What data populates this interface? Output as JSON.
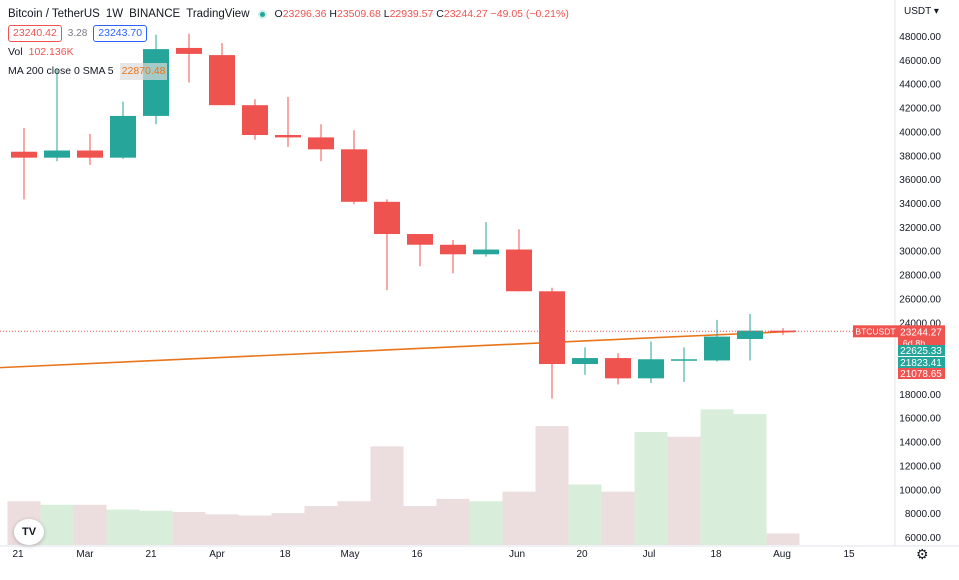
{
  "header": {
    "symbol": "Bitcoin / TetherUS",
    "interval": "1W",
    "exchange": "BINANCE",
    "source": "TradingView",
    "ohlc": {
      "o_label": "O",
      "o": "23296.36",
      "h_label": "H",
      "h": "23509.68",
      "l_label": "L",
      "l": "22939.57",
      "c_label": "C",
      "c": "23244.27",
      "change": "−49.05 (−0.21%)"
    },
    "bid": "23240.42",
    "spread": "3.28",
    "ask": "23243.70",
    "vol_label": "Vol",
    "vol_value": "102.136K",
    "ma_label": "MA 200 close 0 SMA 5",
    "ma_value": "22870.48"
  },
  "currency": "USDT",
  "price_axis": {
    "ticks": [
      "48000.00",
      "46000.00",
      "44000.00",
      "42000.00",
      "40000.00",
      "38000.00",
      "36000.00",
      "34000.00",
      "32000.00",
      "30000.00",
      "28000.00",
      "26000.00",
      "24000.00",
      "18000.00",
      "16000.00",
      "14000.00",
      "12000.00",
      "10000.00",
      "8000.00",
      "6000.00"
    ],
    "tag_symbol": "BTCUSDT",
    "tag_price": "23244.27",
    "tag_countdown": "6d 8h",
    "tag_ma": "22625.33",
    "tag_green": "21823.41",
    "tag_red": "21078.65"
  },
  "time_axis": {
    "labels": [
      "21",
      "Mar",
      "21",
      "Apr",
      "18",
      "May",
      "16",
      "Jun",
      "20",
      "Jul",
      "18",
      "Aug",
      "15"
    ]
  },
  "colors": {
    "up": "#26a69a",
    "down": "#ef5350",
    "ma": "#e8751a",
    "vol_up": "#d8eedb",
    "vol_down": "#ecdede"
  },
  "chart_data": {
    "type": "candlestick",
    "interval": "1W",
    "price_ylim": [
      5000,
      49500
    ],
    "volume_axis_ylim": [
      5000,
      49500
    ],
    "candles": [
      {
        "o": 38300,
        "h": 40300,
        "l": 34300,
        "c": 37800
      },
      {
        "o": 37800,
        "h": 45300,
        "l": 37500,
        "c": 38400
      },
      {
        "o": 38400,
        "h": 39800,
        "l": 37200,
        "c": 37800
      },
      {
        "o": 37800,
        "h": 42500,
        "l": 37700,
        "c": 41300
      },
      {
        "o": 41300,
        "h": 48100,
        "l": 40600,
        "c": 46900
      },
      {
        "o": 47000,
        "h": 48200,
        "l": 44100,
        "c": 46500
      },
      {
        "o": 46400,
        "h": 47400,
        "l": 42200,
        "c": 42200
      },
      {
        "o": 42200,
        "h": 42700,
        "l": 39300,
        "c": 39700
      },
      {
        "o": 39700,
        "h": 42900,
        "l": 38700,
        "c": 39500
      },
      {
        "o": 39500,
        "h": 40600,
        "l": 37500,
        "c": 38500
      },
      {
        "o": 38500,
        "h": 40100,
        "l": 33900,
        "c": 34100
      },
      {
        "o": 34100,
        "h": 34300,
        "l": 26700,
        "c": 31400
      },
      {
        "o": 31400,
        "h": 31400,
        "l": 28700,
        "c": 30500
      },
      {
        "o": 30500,
        "h": 30900,
        "l": 28100,
        "c": 29700
      },
      {
        "o": 29700,
        "h": 32400,
        "l": 29500,
        "c": 30100
      },
      {
        "o": 30100,
        "h": 31800,
        "l": 26600,
        "c": 26600
      },
      {
        "o": 26600,
        "h": 26900,
        "l": 17600,
        "c": 20500
      },
      {
        "o": 20500,
        "h": 21900,
        "l": 19600,
        "c": 21000
      },
      {
        "o": 21000,
        "h": 21400,
        "l": 18800,
        "c": 19300
      },
      {
        "o": 19300,
        "h": 22400,
        "l": 18900,
        "c": 20900
      },
      {
        "o": 20900,
        "h": 21900,
        "l": 19000,
        "c": 20900
      },
      {
        "o": 20800,
        "h": 24200,
        "l": 20700,
        "c": 22800
      },
      {
        "o": 22600,
        "h": 24700,
        "l": 20800,
        "c": 23300
      },
      {
        "o": 23296.36,
        "h": 23509.68,
        "l": 22939.57,
        "c": 23244.27
      }
    ],
    "volume_bars": [
      9000,
      8700,
      8700,
      8300,
      8200,
      8100,
      7900,
      7800,
      8000,
      8600,
      9000,
      13600,
      8600,
      9200,
      9000,
      9800,
      15300,
      10400,
      9800,
      14800,
      14400,
      16700,
      16300,
      6300
    ],
    "volume_up": [
      false,
      true,
      false,
      true,
      true,
      false,
      false,
      false,
      false,
      false,
      false,
      false,
      false,
      false,
      true,
      false,
      false,
      true,
      false,
      true,
      false,
      true,
      true,
      false
    ],
    "ma200": {
      "start": 20200,
      "end": 23250
    }
  }
}
